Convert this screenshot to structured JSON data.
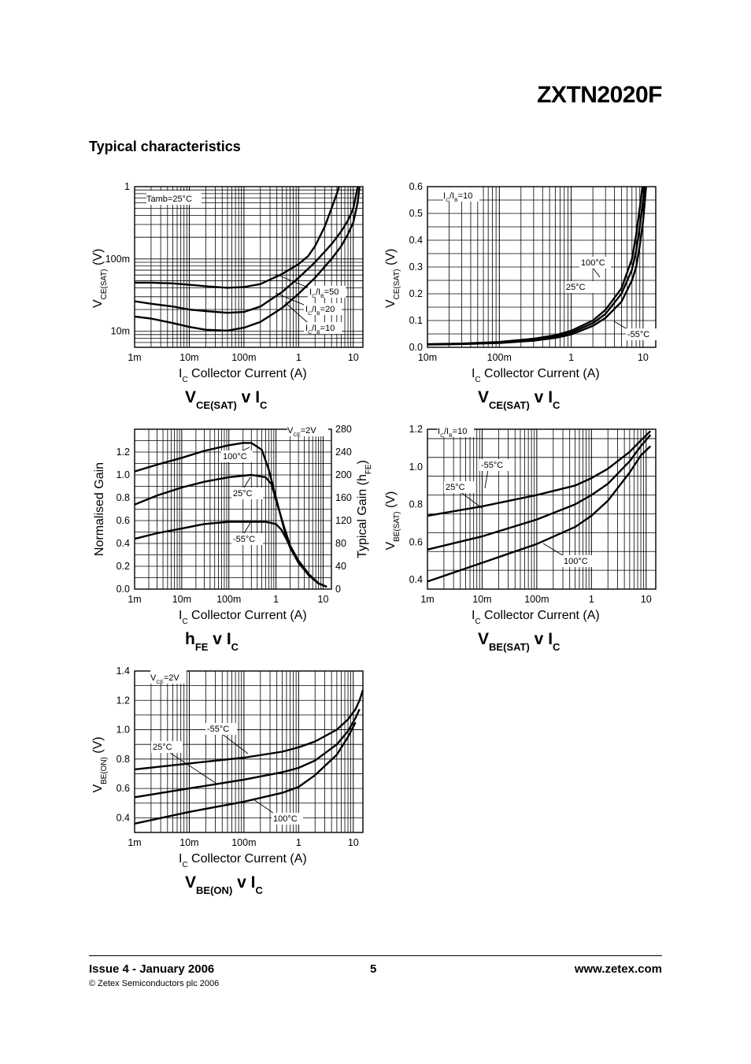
{
  "header": {
    "part_number": "ZXTN2020F",
    "section_title": "Typical characteristics"
  },
  "footer": {
    "issue": "Issue 4 - January 2006",
    "page": "5",
    "website": "www.zetex.com",
    "copyright": "© Zetex Semiconductors plc 2006"
  },
  "chart_data": [
    {
      "id": "vcesat-ratio",
      "type": "line",
      "xscale": "log",
      "yscale": "log",
      "xlim": [
        0.001,
        15
      ],
      "ylim": [
        0.006,
        1
      ],
      "xticks": [
        0.001,
        0.01,
        0.1,
        1,
        10
      ],
      "xtick_labels": [
        "1m",
        "10m",
        "100m",
        "1",
        "10"
      ],
      "yticks": [
        1,
        0.1,
        0.01
      ],
      "ytick_labels": [
        "1",
        "100m",
        "10m"
      ],
      "xlabel_sym": "I",
      "xlabel_sub": "C",
      "xlabel": "Collector Current (A)",
      "ylabel_sym": "V",
      "ylabel_sub": "CE(SAT)",
      "ylabel_unit": "(V)",
      "title_main": "V",
      "title_sub": "CE(SAT)",
      "title_mid": " v I",
      "title_sub2": "C",
      "condition": "Tamb=25°C",
      "series": [
        {
          "name": "IC/IB=10",
          "label_sym": "I",
          "label_sub": "C",
          "label_mid": "/I",
          "label_sub2": "B",
          "label_val": "=10",
          "x": [
            0.001,
            0.002,
            0.005,
            0.01,
            0.02,
            0.05,
            0.1,
            0.2,
            0.5,
            1,
            2,
            4,
            6,
            8,
            10,
            12,
            13
          ],
          "y": [
            0.016,
            0.015,
            0.013,
            0.0115,
            0.0105,
            0.0102,
            0.0112,
            0.0135,
            0.021,
            0.033,
            0.055,
            0.1,
            0.15,
            0.22,
            0.32,
            0.6,
            1
          ]
        },
        {
          "name": "IC/IB=20",
          "label_sym": "I",
          "label_sub": "C",
          "label_mid": "/I",
          "label_sub2": "B",
          "label_val": "=20",
          "x": [
            0.001,
            0.002,
            0.005,
            0.01,
            0.02,
            0.05,
            0.1,
            0.2,
            0.5,
            1,
            2,
            4,
            6,
            8,
            10,
            11,
            12
          ],
          "y": [
            0.026,
            0.024,
            0.022,
            0.02,
            0.019,
            0.018,
            0.0185,
            0.022,
            0.035,
            0.055,
            0.09,
            0.16,
            0.24,
            0.34,
            0.5,
            0.7,
            1
          ]
        },
        {
          "name": "IC/IB=50",
          "label_sym": "I",
          "label_sub": "C",
          "label_mid": "/I",
          "label_sub2": "B",
          "label_val": "=50",
          "x": [
            0.001,
            0.002,
            0.005,
            0.01,
            0.02,
            0.05,
            0.1,
            0.2,
            0.5,
            1,
            1.5,
            2,
            3,
            4,
            5,
            5.5
          ],
          "y": [
            0.047,
            0.047,
            0.046,
            0.044,
            0.042,
            0.04,
            0.041,
            0.045,
            0.062,
            0.085,
            0.11,
            0.15,
            0.28,
            0.5,
            0.8,
            1
          ]
        }
      ]
    },
    {
      "id": "vcesat-temp",
      "type": "line",
      "xscale": "log",
      "yscale": "linear",
      "xlim": [
        0.01,
        15
      ],
      "ylim": [
        0,
        0.6
      ],
      "xticks": [
        0.01,
        0.1,
        1,
        10
      ],
      "xtick_labels": [
        "10m",
        "100m",
        "1",
        "10"
      ],
      "yticks": [
        0,
        0.1,
        0.2,
        0.3,
        0.4,
        0.5,
        0.6
      ],
      "ytick_labels": [
        "0.0",
        "0.1",
        "0.2",
        "0.3",
        "0.4",
        "0.5",
        "0.6"
      ],
      "xlabel_sym": "I",
      "xlabel_sub": "C",
      "xlabel": "Collector Current (A)",
      "ylabel_sym": "V",
      "ylabel_sub": "CE(SAT)",
      "ylabel_unit": "(V)",
      "title_main": "V",
      "title_sub": "CE(SAT)",
      "title_mid": " v I",
      "title_sub2": "C",
      "condition_sym": "I",
      "condition_sub": "C",
      "condition_mid": "/I",
      "condition_sub2": "B",
      "condition_val": "=10",
      "series": [
        {
          "name": "100°C",
          "x": [
            0.01,
            0.03,
            0.1,
            0.3,
            0.6,
            1,
            2,
            3,
            5,
            7,
            8,
            9,
            9.8
          ],
          "y": [
            0.012,
            0.014,
            0.02,
            0.032,
            0.045,
            0.062,
            0.1,
            0.14,
            0.22,
            0.33,
            0.42,
            0.52,
            0.6
          ]
        },
        {
          "name": "25°C",
          "x": [
            0.01,
            0.03,
            0.1,
            0.3,
            0.6,
            1,
            2,
            3,
            5,
            7,
            8,
            9,
            10,
            10.5
          ],
          "y": [
            0.011,
            0.013,
            0.018,
            0.028,
            0.04,
            0.055,
            0.09,
            0.125,
            0.2,
            0.29,
            0.36,
            0.45,
            0.55,
            0.6
          ]
        },
        {
          "name": "-55°C",
          "x": [
            0.01,
            0.03,
            0.1,
            0.3,
            0.6,
            1,
            2,
            3,
            5,
            7,
            8,
            9,
            10,
            11
          ],
          "y": [
            0.01,
            0.012,
            0.016,
            0.025,
            0.035,
            0.048,
            0.08,
            0.11,
            0.17,
            0.25,
            0.3,
            0.38,
            0.47,
            0.6
          ]
        }
      ]
    },
    {
      "id": "hfe",
      "type": "line",
      "xscale": "log",
      "yscale": "linear",
      "xlim": [
        0.001,
        15
      ],
      "ylim": [
        0,
        1.4
      ],
      "xticks": [
        0.001,
        0.01,
        0.1,
        1,
        10
      ],
      "xtick_labels": [
        "1m",
        "10m",
        "100m",
        "1",
        "10"
      ],
      "yticks": [
        0,
        0.2,
        0.4,
        0.6,
        0.8,
        1.0,
        1.2
      ],
      "ytick_labels": [
        "0.0",
        "0.2",
        "0.4",
        "0.6",
        "0.8",
        "1.0",
        "1.2"
      ],
      "y2ticks": [
        0,
        40,
        80,
        120,
        160,
        200,
        240,
        280
      ],
      "y2tick_labels": [
        "0",
        "40",
        "80",
        "120",
        "160",
        "200",
        "240",
        "280"
      ],
      "xlabel_sym": "I",
      "xlabel_sub": "C",
      "xlabel": "Collector Current (A)",
      "ylabel": "Normalised Gain",
      "y2label": "Typical Gain (h",
      "y2label_sub": "FE",
      "y2label_end": ")",
      "title_main": "h",
      "title_sub": "FE",
      "title_mid": " v I",
      "title_sub2": "C",
      "condition_sym": "V",
      "condition_sub": "CE",
      "condition_val": "=2V",
      "series": [
        {
          "name": "100°C",
          "x": [
            0.001,
            0.003,
            0.01,
            0.03,
            0.1,
            0.2,
            0.3,
            0.5,
            0.7,
            1,
            1.5,
            2,
            3,
            5,
            8,
            12
          ],
          "y": [
            1.03,
            1.09,
            1.15,
            1.21,
            1.26,
            1.28,
            1.28,
            1.22,
            1.05,
            0.8,
            0.52,
            0.36,
            0.24,
            0.12,
            0.05,
            0.02
          ]
        },
        {
          "name": "25°C",
          "x": [
            0.001,
            0.003,
            0.01,
            0.03,
            0.1,
            0.3,
            0.6,
            0.8,
            1,
            1.5,
            2,
            3,
            5,
            8,
            12
          ],
          "y": [
            0.74,
            0.82,
            0.89,
            0.94,
            0.98,
            1.0,
            0.98,
            0.92,
            0.78,
            0.54,
            0.38,
            0.25,
            0.13,
            0.05,
            0.02
          ]
        },
        {
          "name": "-55°C",
          "x": [
            0.001,
            0.003,
            0.01,
            0.03,
            0.1,
            0.3,
            0.6,
            1,
            1.3,
            1.7,
            2.2,
            3,
            5,
            8,
            12
          ],
          "y": [
            0.44,
            0.49,
            0.53,
            0.57,
            0.59,
            0.59,
            0.59,
            0.57,
            0.52,
            0.43,
            0.33,
            0.23,
            0.12,
            0.05,
            0.02
          ]
        }
      ]
    },
    {
      "id": "vbesat",
      "type": "line",
      "xscale": "log",
      "yscale": "linear",
      "xlim": [
        0.001,
        15
      ],
      "ylim": [
        0.35,
        1.2
      ],
      "xticks": [
        0.001,
        0.01,
        0.1,
        1,
        10
      ],
      "xtick_labels": [
        "1m",
        "10m",
        "100m",
        "1",
        "10"
      ],
      "yticks": [
        0.4,
        0.6,
        0.8,
        1.0,
        1.2
      ],
      "ytick_labels": [
        "0.4",
        "0.6",
        "0.8",
        "1.0",
        "1.2"
      ],
      "xlabel_sym": "I",
      "xlabel_sub": "C",
      "xlabel": "Collector Current (A)",
      "ylabel_sym": "V",
      "ylabel_sub": "BE(SAT)",
      "ylabel_unit": "(V)",
      "title_main": "V",
      "title_sub": "BE(SAT)",
      "title_mid": " v I",
      "title_sub2": "C",
      "condition_sym": "I",
      "condition_sub": "C",
      "condition_mid": "/I",
      "condition_sub2": "B",
      "condition_val": "=10",
      "series": [
        {
          "name": "-55°C",
          "x": [
            0.001,
            0.01,
            0.1,
            0.5,
            1,
            2,
            5,
            8,
            12
          ],
          "y": [
            0.74,
            0.79,
            0.85,
            0.9,
            0.94,
            0.99,
            1.08,
            1.14,
            1.19
          ]
        },
        {
          "name": "25°C",
          "x": [
            0.001,
            0.01,
            0.1,
            0.5,
            1,
            2,
            5,
            8,
            12
          ],
          "y": [
            0.56,
            0.63,
            0.72,
            0.8,
            0.85,
            0.91,
            1.03,
            1.11,
            1.17
          ]
        },
        {
          "name": "100°C",
          "x": [
            0.001,
            0.01,
            0.1,
            0.5,
            1,
            2,
            5,
            8,
            12
          ],
          "y": [
            0.39,
            0.49,
            0.59,
            0.68,
            0.74,
            0.82,
            0.97,
            1.06,
            1.11
          ]
        }
      ]
    },
    {
      "id": "vbeon",
      "type": "line",
      "xscale": "log",
      "yscale": "linear",
      "xlim": [
        0.001,
        15
      ],
      "ylim": [
        0.3,
        1.4
      ],
      "xticks": [
        0.001,
        0.01,
        0.1,
        1,
        10
      ],
      "xtick_labels": [
        "1m",
        "10m",
        "100m",
        "1",
        "10"
      ],
      "yticks": [
        0.4,
        0.6,
        0.8,
        1.0,
        1.2,
        1.4
      ],
      "ytick_labels": [
        "0.4",
        "0.6",
        "0.8",
        "1.0",
        "1.2",
        "1.4"
      ],
      "xlabel_sym": "I",
      "xlabel_sub": "C",
      "xlabel": "Collector Current (A)",
      "ylabel_sym": "V",
      "ylabel_sub": "BE(ON)",
      "ylabel_unit": "(V)",
      "title_main": "V",
      "title_sub": "BE(ON)",
      "title_mid": " v I",
      "title_sub2": "C",
      "condition_sym": "V",
      "condition_sub": "CE",
      "condition_val": "=2V",
      "series": [
        {
          "name": "-55°C",
          "x": [
            0.001,
            0.01,
            0.1,
            0.5,
            1,
            2,
            5,
            8,
            11,
            13,
            15
          ],
          "y": [
            0.73,
            0.77,
            0.81,
            0.85,
            0.88,
            0.92,
            1.0,
            1.07,
            1.14,
            1.2,
            1.27
          ]
        },
        {
          "name": "25°C",
          "x": [
            0.001,
            0.01,
            0.1,
            0.5,
            1,
            2,
            5,
            8,
            11,
            13
          ],
          "y": [
            0.54,
            0.6,
            0.66,
            0.71,
            0.74,
            0.79,
            0.9,
            0.99,
            1.08,
            1.14
          ]
        },
        {
          "name": "100°C",
          "x": [
            0.001,
            0.01,
            0.1,
            0.5,
            1,
            2,
            5,
            8,
            11
          ],
          "y": [
            0.36,
            0.44,
            0.51,
            0.57,
            0.61,
            0.69,
            0.83,
            0.95,
            1.05
          ]
        }
      ]
    }
  ]
}
